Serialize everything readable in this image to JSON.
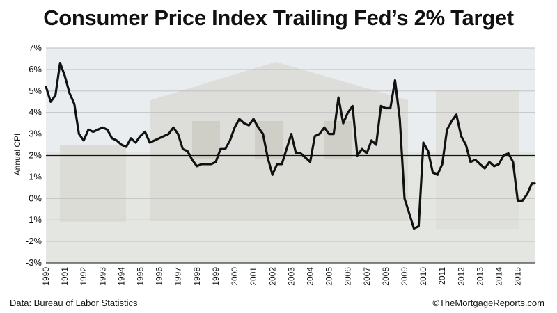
{
  "chart_data": {
    "type": "line",
    "title": "Consumer Price Index Trailing Fed’s 2% Target",
    "ylabel": "Annual CPI",
    "xlabel": "",
    "ylim": [
      -3,
      7
    ],
    "yticks": [
      "7%",
      "6%",
      "5%",
      "4%",
      "3%",
      "2%",
      "1%",
      "0%",
      "-1%",
      "-2%",
      "-3%"
    ],
    "xticks": [
      "1990",
      "1991",
      "1992",
      "1993",
      "1994",
      "1995",
      "1996",
      "1997",
      "1998",
      "1999",
      "2000",
      "2001",
      "2002",
      "2003",
      "2004",
      "2005",
      "2006",
      "2007",
      "2008",
      "2009",
      "2010",
      "2011",
      "2012",
      "2013",
      "2014",
      "2015"
    ],
    "xlim": [
      1990,
      2015.9
    ],
    "reference_line": 2,
    "grid": true,
    "series": [
      {
        "x": [
          1990.0,
          1990.25,
          1990.5,
          1990.75,
          1991.0,
          1991.25,
          1991.5,
          1991.75,
          1992.0,
          1992.25,
          1992.5,
          1992.75,
          1993.0,
          1993.25,
          1993.5,
          1993.75,
          1994.0,
          1994.25,
          1994.5,
          1994.75,
          1995.0,
          1995.25,
          1995.5,
          1995.75,
          1996.0,
          1996.25,
          1996.5,
          1996.75,
          1997.0,
          1997.25,
          1997.5,
          1997.75,
          1998.0,
          1998.25,
          1998.5,
          1998.75,
          1999.0,
          1999.25,
          1999.5,
          1999.75,
          2000.0,
          2000.25,
          2000.5,
          2000.75,
          2001.0,
          2001.25,
          2001.5,
          2001.75,
          2002.0,
          2002.25,
          2002.5,
          2002.75,
          2003.0,
          2003.25,
          2003.5,
          2003.75,
          2004.0,
          2004.25,
          2004.5,
          2004.75,
          2005.0,
          2005.25,
          2005.5,
          2005.75,
          2006.0,
          2006.25,
          2006.5,
          2006.75,
          2007.0,
          2007.25,
          2007.5,
          2007.75,
          2008.0,
          2008.25,
          2008.5,
          2008.75,
          2009.0,
          2009.25,
          2009.5,
          2009.75,
          2010.0,
          2010.25,
          2010.5,
          2010.75,
          2011.0,
          2011.25,
          2011.5,
          2011.75,
          2012.0,
          2012.25,
          2012.5,
          2012.75,
          2013.0,
          2013.25,
          2013.5,
          2013.75,
          2014.0,
          2014.25,
          2014.5,
          2014.75,
          2015.0,
          2015.25,
          2015.5,
          2015.75,
          2015.9
        ],
        "values": [
          5.2,
          4.5,
          4.8,
          6.3,
          5.7,
          4.9,
          4.4,
          3.0,
          2.7,
          3.2,
          3.1,
          3.2,
          3.3,
          3.2,
          2.8,
          2.7,
          2.5,
          2.4,
          2.8,
          2.6,
          2.9,
          3.1,
          2.6,
          2.7,
          2.8,
          2.9,
          3.0,
          3.3,
          3.0,
          2.3,
          2.2,
          1.8,
          1.5,
          1.6,
          1.6,
          1.6,
          1.7,
          2.3,
          2.3,
          2.7,
          3.3,
          3.7,
          3.5,
          3.4,
          3.7,
          3.3,
          3.0,
          1.9,
          1.1,
          1.6,
          1.6,
          2.3,
          3.0,
          2.1,
          2.1,
          1.9,
          1.7,
          2.9,
          3.0,
          3.3,
          3.0,
          3.0,
          4.7,
          3.5,
          4.0,
          4.3,
          2.0,
          2.3,
          2.1,
          2.7,
          2.5,
          4.3,
          4.2,
          4.2,
          5.5,
          3.7,
          0.0,
          -0.7,
          -1.4,
          -1.3,
          2.6,
          2.2,
          1.2,
          1.1,
          1.6,
          3.2,
          3.6,
          3.9,
          2.9,
          2.5,
          1.7,
          1.8,
          1.6,
          1.4,
          1.7,
          1.5,
          1.6,
          2.0,
          2.1,
          1.7,
          -0.1,
          -0.1,
          0.2,
          0.7,
          0.7
        ]
      }
    ]
  },
  "footer": {
    "source": "Data: Bureau of Labor Statistics",
    "credit": "©TheMortgageReports.com"
  },
  "colors": {
    "line": "#111111",
    "grid": "#bdbdbd",
    "reference": "#111111",
    "photo_sky": "#e9edf0",
    "photo_house": "#d9d9d3"
  }
}
